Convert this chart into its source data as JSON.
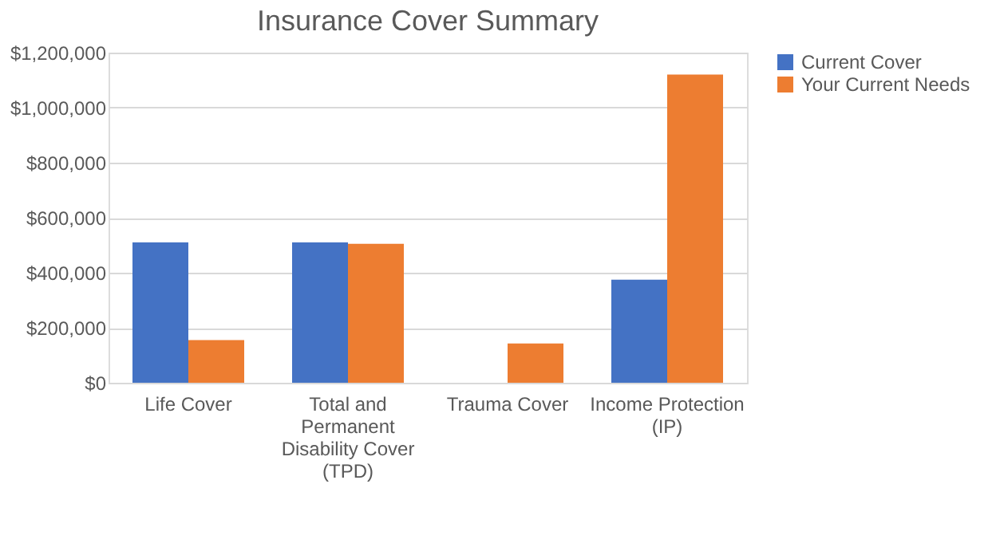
{
  "chart_data": {
    "type": "bar",
    "title": "Insurance Cover Summary",
    "categories": [
      "Life Cover",
      "Total and Permanent Disability Cover (TPD)",
      "Trauma Cover",
      "Income Protection (IP)"
    ],
    "series": [
      {
        "name": "Current Cover",
        "color": "#4472c4",
        "values": [
          510000,
          510000,
          null,
          375000
        ]
      },
      {
        "name": "Your Current Needs",
        "color": "#ed7d31",
        "values": [
          155000,
          505000,
          143000,
          1120000
        ]
      }
    ],
    "ylim": [
      0,
      1200000
    ],
    "yticks": [
      {
        "value": 0,
        "label": "$0"
      },
      {
        "value": 200000,
        "label": "$200,000"
      },
      {
        "value": 400000,
        "label": "$400,000"
      },
      {
        "value": 600000,
        "label": "$600,000"
      },
      {
        "value": 800000,
        "label": "$800,000"
      },
      {
        "value": 1000000,
        "label": "$1,000,000"
      },
      {
        "value": 1200000,
        "label": "$1,200,000"
      }
    ],
    "grid": "y",
    "legend": "right"
  }
}
